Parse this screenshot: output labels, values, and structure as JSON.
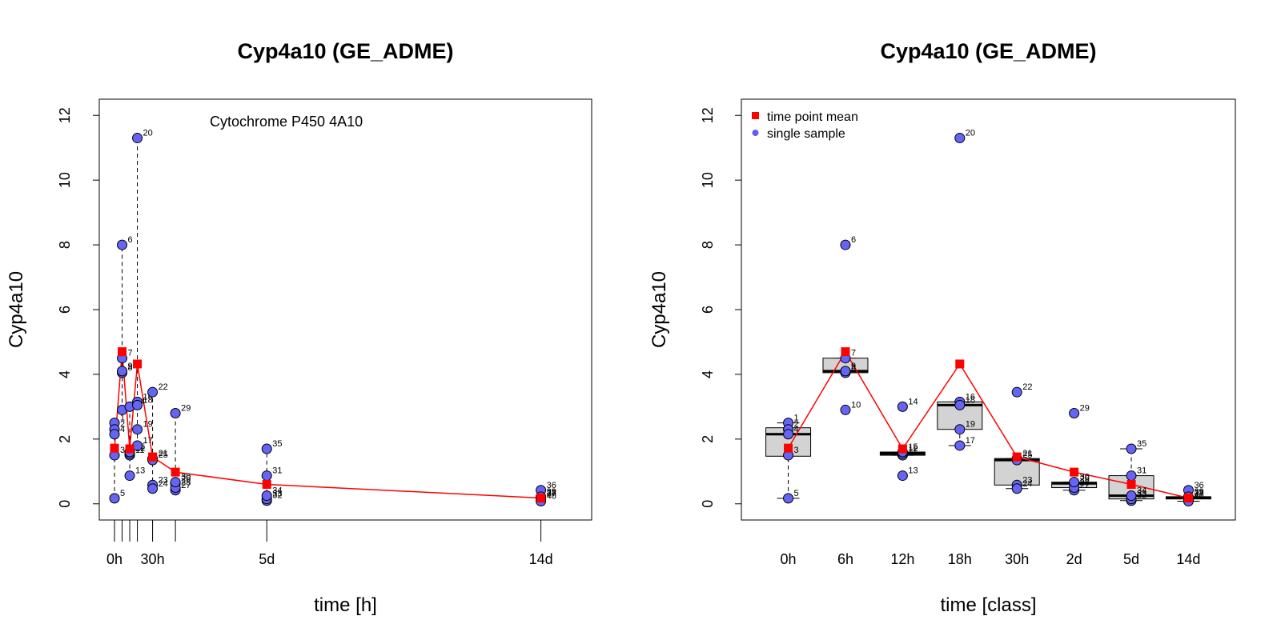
{
  "chart_data": [
    {
      "type": "scatter",
      "title": "Cyp4a10 (GE_ADME)",
      "xlabel": "time [h]",
      "ylabel": "Cyp4a10",
      "annotation": "Cytochrome P450 4A10",
      "ylim": [
        -0.5,
        12.5
      ],
      "yticks": [
        0,
        2,
        4,
        6,
        8,
        10,
        12
      ],
      "xlim": [
        -12,
        376
      ],
      "xticks": [
        {
          "value": 0,
          "label": "0h"
        },
        {
          "value": 6,
          "label": ""
        },
        {
          "value": 12,
          "label": ""
        },
        {
          "value": 18,
          "label": ""
        },
        {
          "value": 30,
          "label": "30h"
        },
        {
          "value": 48,
          "label": ""
        },
        {
          "value": 120,
          "label": "5d"
        },
        {
          "value": 336,
          "label": "14d"
        }
      ],
      "samples": [
        {
          "id": "1",
          "x": 0,
          "y": 2.5
        },
        {
          "id": "2",
          "x": 0,
          "y": 2.3
        },
        {
          "id": "3",
          "x": 0,
          "y": 1.5
        },
        {
          "id": "4",
          "x": 0,
          "y": 2.15
        },
        {
          "id": "5",
          "x": 0,
          "y": 0.17
        },
        {
          "id": "6",
          "x": 6,
          "y": 8.0
        },
        {
          "id": "7",
          "x": 6,
          "y": 4.5
        },
        {
          "id": "8",
          "x": 6,
          "y": 4.05
        },
        {
          "id": "9",
          "x": 6,
          "y": 4.1
        },
        {
          "id": "10",
          "x": 6,
          "y": 2.9
        },
        {
          "id": "11",
          "x": 12,
          "y": 1.5
        },
        {
          "id": "12",
          "x": 12,
          "y": 1.55
        },
        {
          "id": "13",
          "x": 12,
          "y": 0.87
        },
        {
          "id": "14",
          "x": 12,
          "y": 3.0
        },
        {
          "id": "15",
          "x": 12,
          "y": 1.6
        },
        {
          "id": "16",
          "x": 18,
          "y": 3.15
        },
        {
          "id": "17",
          "x": 18,
          "y": 1.8
        },
        {
          "id": "18",
          "x": 18,
          "y": 3.05
        },
        {
          "id": "19",
          "x": 18,
          "y": 2.3
        },
        {
          "id": "20",
          "x": 18,
          "y": 11.3
        },
        {
          "id": "21",
          "x": 30,
          "y": 1.4
        },
        {
          "id": "22",
          "x": 30,
          "y": 3.45
        },
        {
          "id": "23",
          "x": 30,
          "y": 0.58
        },
        {
          "id": "24",
          "x": 30,
          "y": 0.47
        },
        {
          "id": "25",
          "x": 30,
          "y": 1.35
        },
        {
          "id": "26",
          "x": 48,
          "y": 0.63
        },
        {
          "id": "27",
          "x": 48,
          "y": 0.42
        },
        {
          "id": "28",
          "x": 48,
          "y": 0.5
        },
        {
          "id": "29",
          "x": 48,
          "y": 2.8
        },
        {
          "id": "30",
          "x": 48,
          "y": 0.67
        },
        {
          "id": "31",
          "x": 120,
          "y": 0.87
        },
        {
          "id": "32",
          "x": 120,
          "y": 0.1
        },
        {
          "id": "33",
          "x": 120,
          "y": 0.15
        },
        {
          "id": "34",
          "x": 120,
          "y": 0.25
        },
        {
          "id": "35",
          "x": 120,
          "y": 1.7
        },
        {
          "id": "36",
          "x": 336,
          "y": 0.42
        },
        {
          "id": "37",
          "x": 336,
          "y": 0.15
        },
        {
          "id": "38",
          "x": 336,
          "y": 0.18
        },
        {
          "id": "39",
          "x": 336,
          "y": 0.22
        },
        {
          "id": "40",
          "x": 336,
          "y": 0.08
        }
      ],
      "means": [
        {
          "x": 0,
          "y": 1.72
        },
        {
          "x": 6,
          "y": 4.7
        },
        {
          "x": 12,
          "y": 1.7
        },
        {
          "x": 18,
          "y": 4.32
        },
        {
          "x": 30,
          "y": 1.45
        },
        {
          "x": 48,
          "y": 0.98
        },
        {
          "x": 120,
          "y": 0.6
        },
        {
          "x": 336,
          "y": 0.18
        }
      ]
    },
    {
      "type": "box",
      "title": "Cyp4a10 (GE_ADME)",
      "xlabel": "time [class]",
      "ylabel": "Cyp4a10",
      "ylim": [
        -0.5,
        12.5
      ],
      "yticks": [
        0,
        2,
        4,
        6,
        8,
        10,
        12
      ],
      "categories": [
        "0h",
        "6h",
        "12h",
        "18h",
        "30h",
        "2d",
        "5d",
        "14d"
      ],
      "boxes": [
        {
          "category": "0h",
          "min": 0.17,
          "q1": 1.47,
          "median": 2.15,
          "q3": 2.35,
          "max": 2.5
        },
        {
          "category": "6h",
          "min": 4.05,
          "q1": 4.05,
          "median": 4.1,
          "q3": 4.5,
          "max": 4.5
        },
        {
          "category": "12h",
          "min": 1.5,
          "q1": 1.5,
          "median": 1.55,
          "q3": 1.6,
          "max": 1.6
        },
        {
          "category": "18h",
          "min": 1.8,
          "q1": 2.3,
          "median": 3.05,
          "q3": 3.15,
          "max": 3.15
        },
        {
          "category": "30h",
          "min": 0.47,
          "q1": 0.58,
          "median": 1.35,
          "q3": 1.4,
          "max": 1.4
        },
        {
          "category": "2d",
          "min": 0.42,
          "q1": 0.5,
          "median": 0.63,
          "q3": 0.67,
          "max": 0.67
        },
        {
          "category": "5d",
          "min": 0.1,
          "q1": 0.15,
          "median": 0.25,
          "q3": 0.87,
          "max": 1.7
        },
        {
          "category": "14d",
          "min": 0.08,
          "q1": 0.15,
          "median": 0.18,
          "q3": 0.22,
          "max": 0.22
        }
      ],
      "legend": {
        "position": "top-left",
        "entries": [
          {
            "label": "time point mean",
            "color": "#ff0000",
            "marker": "square"
          },
          {
            "label": "single sample",
            "color": "#6060f0",
            "marker": "circle"
          }
        ]
      },
      "colors": {
        "sample_fill": "#6464f5",
        "mean": "#ff0000",
        "box_fill": "#d3d3d3"
      }
    }
  ]
}
